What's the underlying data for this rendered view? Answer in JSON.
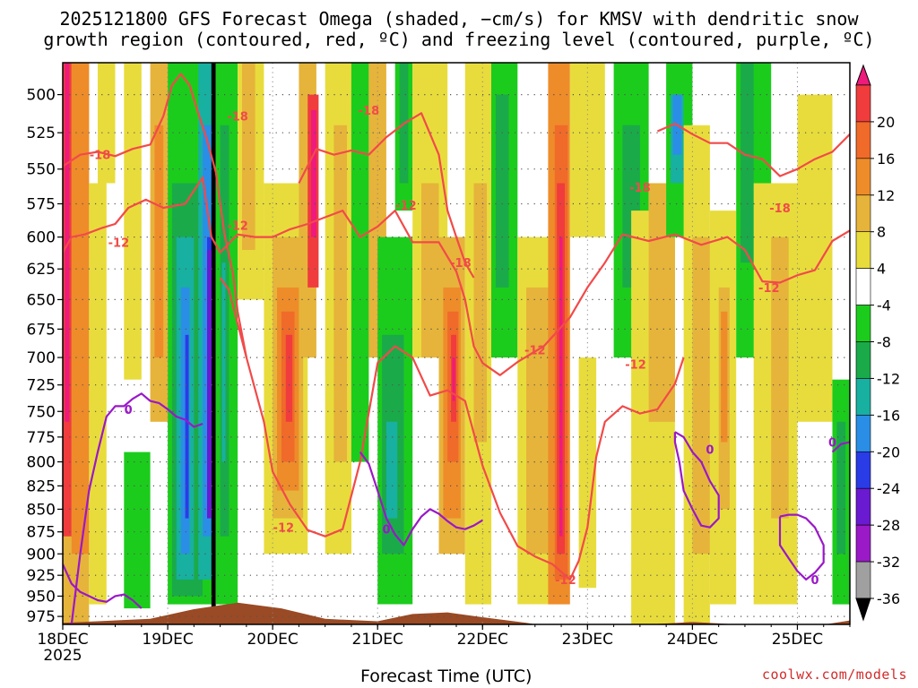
{
  "title": {
    "line1": "2025121800 GFS Forecast Omega (shaded, −cm/s) for KMSV with dendritic snow",
    "line2": "growth region (contoured, red, ºC) and freezing level (contoured, purple, ºC)"
  },
  "credit": "coolwx.com/models",
  "chart_data": {
    "type": "heatmap",
    "xlabel": "Forecast Time (UTC)",
    "ylabel": "",
    "x_range_hours": [
      0,
      180
    ],
    "x_ticks": [
      {
        "label": "18DEC",
        "sublabel": "2025",
        "hour": 0
      },
      {
        "label": "19DEC",
        "hour": 24
      },
      {
        "label": "20DEC",
        "hour": 48
      },
      {
        "label": "21DEC",
        "hour": 72
      },
      {
        "label": "22DEC",
        "hour": 96
      },
      {
        "label": "23DEC",
        "hour": 120
      },
      {
        "label": "24DEC",
        "hour": 144
      },
      {
        "label": "25DEC",
        "hour": 168
      }
    ],
    "y_scale": "log",
    "y_range_hpa": [
      480,
      985
    ],
    "y_ticks": [
      500,
      525,
      550,
      575,
      600,
      625,
      650,
      675,
      700,
      725,
      750,
      775,
      800,
      825,
      850,
      875,
      900,
      925,
      950,
      975
    ],
    "grid": true,
    "colorbar": {
      "labels": [
        20,
        16,
        12,
        8,
        4,
        -4,
        -8,
        -12,
        -16,
        -20,
        -24,
        -28,
        -32,
        -36
      ],
      "colors": [
        "#ee1a7c",
        "#f03c3c",
        "#f06a2a",
        "#ee8c2a",
        "#e6b43a",
        "#e8dc3c",
        "#ffffff",
        "#1ccc1c",
        "#1aaa4a",
        "#18b0a0",
        "#2a8ee6",
        "#2a3ce6",
        "#6a1ad0",
        "#9a1ac8",
        "#a0a0a0",
        "#000000"
      ]
    },
    "series": [
      {
        "name": "-12",
        "color": "#f24a4a",
        "points": [
          [
            0,
            612
          ],
          [
            2,
            600
          ],
          [
            5,
            598
          ],
          [
            9,
            593
          ],
          [
            12,
            590
          ],
          [
            15,
            578
          ],
          [
            19,
            572
          ],
          [
            23,
            578
          ],
          [
            28,
            575
          ],
          [
            32,
            556
          ],
          [
            34,
            600
          ],
          [
            36,
            612
          ],
          [
            40,
            598
          ],
          [
            44,
            600
          ],
          [
            48,
            600
          ],
          [
            52,
            594
          ],
          [
            56,
            590
          ],
          [
            60,
            585
          ],
          [
            64,
            580
          ],
          [
            68,
            600
          ],
          [
            72,
            592
          ],
          [
            76,
            580
          ],
          [
            80,
            604
          ],
          [
            86,
            604
          ],
          [
            90,
            627
          ],
          [
            92,
            650
          ],
          [
            94,
            690
          ],
          [
            96,
            705
          ],
          [
            100,
            716
          ],
          [
            104,
            704
          ],
          [
            110,
            690
          ],
          [
            116,
            665
          ],
          [
            120,
            640
          ],
          [
            124,
            620
          ],
          [
            128,
            598
          ],
          [
            134,
            603
          ],
          [
            140,
            598
          ],
          [
            146,
            606
          ],
          [
            152,
            600
          ],
          [
            156,
            610
          ],
          [
            160,
            635
          ],
          [
            164,
            636
          ],
          [
            168,
            630
          ],
          [
            172,
            626
          ],
          [
            176,
            603
          ],
          [
            180,
            595
          ]
        ]
      },
      {
        "name": "-12",
        "color": "#f24a4a",
        "points": [
          [
            36,
            632
          ],
          [
            38,
            642
          ],
          [
            42,
            700
          ],
          [
            46,
            760
          ],
          [
            48,
            810
          ],
          [
            52,
            845
          ],
          [
            56,
            873
          ],
          [
            60,
            880
          ],
          [
            64,
            872
          ],
          [
            68,
            800
          ],
          [
            72,
            705
          ],
          [
            76,
            690
          ],
          [
            80,
            700
          ],
          [
            84,
            735
          ],
          [
            88,
            730
          ],
          [
            92,
            740
          ],
          [
            96,
            804
          ],
          [
            100,
            854
          ],
          [
            104,
            891
          ],
          [
            108,
            903
          ],
          [
            112,
            912
          ],
          [
            114,
            921
          ],
          [
            116,
            930
          ],
          [
            118,
            908
          ],
          [
            120,
            870
          ],
          [
            122,
            795
          ],
          [
            124,
            760
          ],
          [
            128,
            745
          ],
          [
            132,
            752
          ],
          [
            136,
            748
          ],
          [
            140,
            724
          ],
          [
            142,
            700
          ]
        ]
      },
      {
        "name": "-18",
        "color": "#f24a4a",
        "points": [
          [
            0,
            548
          ],
          [
            4,
            540
          ],
          [
            8,
            538
          ],
          [
            12,
            541
          ],
          [
            16,
            536
          ],
          [
            20,
            533
          ],
          [
            23,
            514
          ],
          [
            25,
            494
          ],
          [
            27,
            487
          ],
          [
            29,
            494
          ],
          [
            31,
            512
          ],
          [
            33,
            530
          ],
          [
            35,
            552
          ],
          [
            37,
            598
          ],
          [
            39,
            630
          ],
          [
            40,
            660
          ],
          [
            42,
            700
          ]
        ]
      },
      {
        "name": "-18",
        "color": "#f24a4a",
        "points": [
          [
            54,
            560
          ],
          [
            58,
            536
          ],
          [
            62,
            540
          ],
          [
            66,
            537
          ],
          [
            70,
            540
          ],
          [
            74,
            528
          ],
          [
            78,
            519
          ],
          [
            82,
            512
          ],
          [
            86,
            540
          ],
          [
            88,
            580
          ],
          [
            90,
            600
          ],
          [
            92,
            620
          ],
          [
            94,
            632
          ]
        ]
      },
      {
        "name": "-18",
        "color": "#f24a4a",
        "points": [
          [
            136,
            524
          ],
          [
            140,
            519
          ],
          [
            144,
            526
          ],
          [
            148,
            532
          ],
          [
            152,
            532
          ],
          [
            156,
            540
          ],
          [
            160,
            543
          ],
          [
            164,
            555
          ],
          [
            168,
            550
          ],
          [
            172,
            543
          ],
          [
            176,
            538
          ],
          [
            180,
            526
          ]
        ]
      },
      {
        "name": "0",
        "color": "#9a18c8",
        "points": [
          [
            2,
            985
          ],
          [
            4,
            900
          ],
          [
            6,
            830
          ],
          [
            8,
            790
          ],
          [
            10,
            755
          ],
          [
            12,
            745
          ],
          [
            14,
            745
          ],
          [
            16,
            738
          ],
          [
            18,
            733
          ],
          [
            20,
            740
          ],
          [
            22,
            742
          ],
          [
            24,
            748
          ],
          [
            26,
            755
          ],
          [
            28,
            758
          ],
          [
            30,
            765
          ],
          [
            32,
            762
          ]
        ]
      },
      {
        "name": "0",
        "color": "#9a18c8",
        "points": [
          [
            0,
            912
          ],
          [
            2,
            935
          ],
          [
            4,
            945
          ],
          [
            6,
            950
          ],
          [
            8,
            955
          ],
          [
            10,
            957
          ],
          [
            12,
            950
          ],
          [
            14,
            948
          ],
          [
            16,
            955
          ],
          [
            18,
            965
          ]
        ]
      },
      {
        "name": "0",
        "color": "#9a18c8",
        "points": [
          [
            68,
            790
          ],
          [
            70,
            802
          ],
          [
            72,
            830
          ],
          [
            74,
            860
          ],
          [
            76,
            878
          ],
          [
            78,
            890
          ],
          [
            80,
            872
          ],
          [
            82,
            858
          ],
          [
            84,
            850
          ],
          [
            86,
            855
          ],
          [
            88,
            863
          ],
          [
            90,
            870
          ],
          [
            92,
            872
          ],
          [
            94,
            868
          ],
          [
            96,
            862
          ]
        ]
      },
      {
        "name": "0",
        "color": "#9a18c8",
        "points": [
          [
            140,
            770
          ],
          [
            142,
            775
          ],
          [
            144,
            790
          ],
          [
            146,
            800
          ],
          [
            148,
            820
          ],
          [
            150,
            835
          ],
          [
            150,
            860
          ],
          [
            148,
            870
          ],
          [
            146,
            868
          ],
          [
            144,
            850
          ],
          [
            142,
            830
          ],
          [
            141,
            800
          ],
          [
            140,
            780
          ],
          [
            140,
            770
          ]
        ]
      },
      {
        "name": "0",
        "color": "#9a18c8",
        "points": [
          [
            164,
            858
          ],
          [
            166,
            856
          ],
          [
            168,
            856
          ],
          [
            170,
            860
          ],
          [
            172,
            870
          ],
          [
            174,
            890
          ],
          [
            174,
            910
          ],
          [
            172,
            922
          ],
          [
            170,
            930
          ],
          [
            168,
            920
          ],
          [
            166,
            905
          ],
          [
            164,
            890
          ],
          [
            164,
            870
          ],
          [
            164,
            858
          ]
        ]
      },
      {
        "name": "0",
        "color": "#9a18c8",
        "points": [
          [
            176,
            790
          ],
          [
            178,
            782
          ],
          [
            180,
            780
          ]
        ]
      }
    ],
    "contour_labels": [
      {
        "text": "-18",
        "hour": 8.5,
        "hpa": 540
      },
      {
        "text": "-12",
        "hour": 12.8,
        "hpa": 604
      },
      {
        "text": "-18",
        "hour": 40,
        "hpa": 514
      },
      {
        "text": "-12",
        "hour": 40,
        "hpa": 591
      },
      {
        "text": "-18",
        "hour": 70,
        "hpa": 510
      },
      {
        "text": "-12",
        "hour": 78.5,
        "hpa": 576
      },
      {
        "text": "-18",
        "hour": 91,
        "hpa": 620
      },
      {
        "text": "-12",
        "hour": 108,
        "hpa": 693
      },
      {
        "text": "-12",
        "hour": 131,
        "hpa": 706
      },
      {
        "text": "-18",
        "hour": 132,
        "hpa": 563
      },
      {
        "text": "-18",
        "hour": 164,
        "hpa": 578
      },
      {
        "text": "-12",
        "hour": 161.5,
        "hpa": 640
      },
      {
        "text": "-12",
        "hour": 50.5,
        "hpa": 870
      },
      {
        "text": "-12",
        "hour": 115,
        "hpa": 930
      },
      {
        "text": "0",
        "hour": 15,
        "hpa": 748
      },
      {
        "text": "0",
        "hour": 74,
        "hpa": 872
      },
      {
        "text": "0",
        "hour": 148,
        "hpa": 787
      },
      {
        "text": "0",
        "hour": 172,
        "hpa": 930
      },
      {
        "text": "0",
        "hour": 176,
        "hpa": 780
      }
    ]
  }
}
